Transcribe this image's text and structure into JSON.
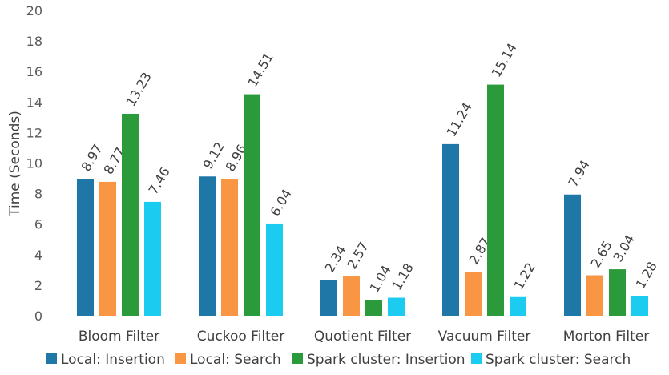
{
  "chart_data": {
    "type": "bar",
    "title": "",
    "xlabel": "",
    "ylabel": "Time (Seconds)",
    "ylim": [
      0,
      20
    ],
    "yticks": [
      "0",
      "2",
      "4",
      "6",
      "8",
      "10",
      "12",
      "14",
      "16",
      "18",
      "20"
    ],
    "grid": false,
    "legend_position": "bottom",
    "categories": [
      "Bloom Filter",
      "Cuckoo Filter",
      "Quotient Filter",
      "Vacuum Filter",
      "Morton Filter"
    ],
    "series": [
      {
        "name": "Local: Insertion",
        "color": "#1f77a8",
        "values": [
          8.97,
          9.12,
          2.34,
          11.24,
          7.94
        ]
      },
      {
        "name": "Local: Search",
        "color": "#f99644",
        "values": [
          8.77,
          8.96,
          2.57,
          2.87,
          2.65
        ]
      },
      {
        "name": "Spark cluster: Insertion",
        "color": "#2b9a3a",
        "values": [
          13.23,
          14.51,
          1.04,
          15.14,
          3.04
        ]
      },
      {
        "name": "Spark cluster: Search",
        "color": "#1ccbf0",
        "values": [
          7.46,
          6.04,
          1.18,
          1.22,
          1.28
        ]
      }
    ]
  }
}
